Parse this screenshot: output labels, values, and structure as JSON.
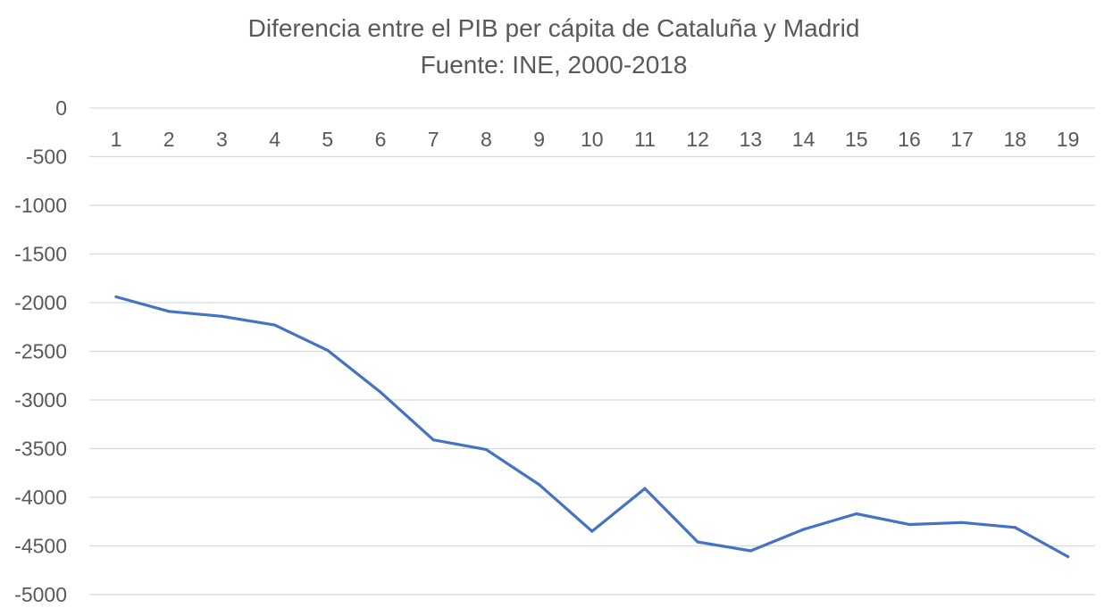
{
  "chart_data": {
    "type": "line",
    "title": "Diferencia entre el PIB per cápita de Cataluña y Madrid",
    "subtitle": "Fuente: INE, 2000-2018",
    "xlabel": "",
    "ylabel": "",
    "ylim": [
      -5000,
      0
    ],
    "y_ticks": [
      0,
      -500,
      -1000,
      -1500,
      -2000,
      -2500,
      -3000,
      -3500,
      -4000,
      -4500,
      -5000
    ],
    "y_tick_labels": [
      "0",
      "-500",
      "-1000",
      "-1500",
      "-2000",
      "-2500",
      "-3000",
      "-3500",
      "-4000",
      "-4500",
      "-5000"
    ],
    "x_axis_position": "top",
    "grid": true,
    "legend": "none",
    "categories": [
      "1",
      "2",
      "3",
      "4",
      "5",
      "6",
      "7",
      "8",
      "9",
      "10",
      "11",
      "12",
      "13",
      "14",
      "15",
      "16",
      "17",
      "18",
      "19"
    ],
    "series": [
      {
        "color": "#4472c4",
        "values": [
          -1940,
          -2090,
          -2140,
          -2230,
          -2490,
          -2920,
          -3410,
          -3510,
          -3870,
          -4350,
          -3910,
          -4460,
          -4550,
          -4330,
          -4170,
          -4280,
          -4260,
          -4310,
          -4610
        ]
      }
    ]
  }
}
